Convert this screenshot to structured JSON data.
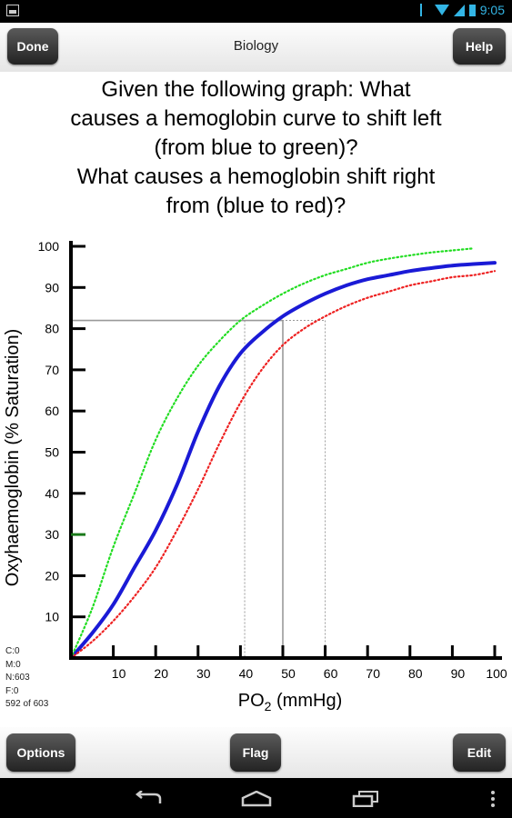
{
  "status_bar": {
    "time": "9:05"
  },
  "top_bar": {
    "done_label": "Done",
    "title": "Biology",
    "help_label": "Help"
  },
  "question": {
    "lines": [
      "Given the following graph:  What",
      "causes a hemoglobin curve to shift left",
      "(from blue to green)?",
      "What causes a hemoglobin shift right",
      "from (blue to red)?"
    ]
  },
  "chart_data": {
    "type": "line",
    "ylabel": "Oxyhaemoglobin (% Saturation)",
    "xlabel": "PO",
    "xlabel_sub": "2",
    "xlabel_unit": " (mmHg)",
    "xlim": [
      0,
      100
    ],
    "ylim": [
      0,
      100
    ],
    "xticks": [
      10,
      20,
      30,
      40,
      50,
      60,
      70,
      80,
      90,
      100
    ],
    "yticks": [
      10,
      20,
      30,
      40,
      50,
      60,
      70,
      80,
      90,
      100
    ],
    "series": [
      {
        "color": "#1a1ad6",
        "style": "solid",
        "x": [
          0,
          5,
          10,
          15,
          20,
          25,
          30,
          35,
          40,
          45,
          50,
          55,
          60,
          65,
          70,
          75,
          80,
          85,
          90,
          95,
          100
        ],
        "y": [
          0,
          6,
          13,
          22,
          31,
          42,
          55,
          66,
          74,
          79,
          83,
          86,
          88.5,
          90.5,
          92,
          93,
          94,
          94.7,
          95.3,
          95.7,
          96
        ]
      },
      {
        "color": "#22dd22",
        "style": "dotted",
        "x": [
          0,
          5,
          10,
          15,
          20,
          25,
          30,
          35,
          40,
          45,
          50,
          55,
          60,
          65,
          70,
          75,
          80,
          85,
          90,
          95
        ],
        "y": [
          0,
          12,
          27,
          40,
          53,
          63,
          71,
          77,
          82,
          85.5,
          88.5,
          91,
          93,
          94.5,
          96,
          97,
          97.8,
          98.5,
          99,
          99.5
        ]
      },
      {
        "color": "#ee2222",
        "style": "dotted",
        "x": [
          0,
          5,
          10,
          15,
          20,
          25,
          30,
          35,
          40,
          45,
          50,
          55,
          60,
          65,
          70,
          75,
          80,
          85,
          90,
          95,
          100
        ],
        "y": [
          0,
          4,
          9,
          15,
          22,
          31,
          41,
          52,
          62,
          70,
          76,
          80,
          83,
          85.5,
          87.5,
          89,
          90.5,
          91.5,
          92.5,
          93,
          94
        ]
      }
    ],
    "reference_lines": [
      {
        "x": 50,
        "y": 82,
        "style": "solid",
        "color": "#999999"
      },
      {
        "x": 41,
        "y": 82,
        "style": "dotted",
        "color": "#999999"
      },
      {
        "x": 60,
        "y": 82,
        "style": "dotted",
        "color": "#999999"
      }
    ]
  },
  "stats": {
    "c": "C:0",
    "m": "M:0",
    "n": "N:603",
    "f": "F:0",
    "progress": "592 of 603"
  },
  "bottom_bar": {
    "options_label": "Options",
    "flag_label": "Flag",
    "edit_label": "Edit"
  },
  "colors": {
    "axis": "#000000",
    "accent_tick": "#1a7a1a",
    "status_accent": "#33b5e5"
  },
  "icons": {
    "back": "back-icon",
    "home": "home-icon",
    "recents": "recents-icon",
    "menu": "menu-icon"
  }
}
